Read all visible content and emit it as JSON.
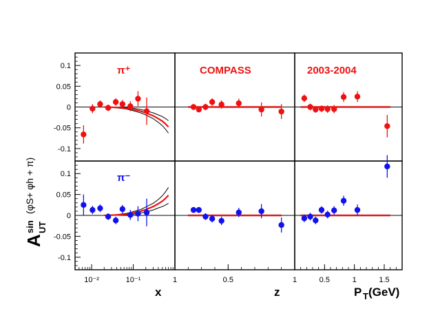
{
  "figure": {
    "ylabel_main": "A",
    "ylabel_sub": "UT",
    "ylabel_sup": "sin",
    "ylabel_func": "(φS+ φh + π)",
    "xlabels": [
      "x",
      "z",
      "P",
      "T",
      " (GeV)"
    ],
    "panel_labels": [
      "π⁺",
      "COMPASS",
      "2003-2004",
      "π⁻"
    ],
    "colors": {
      "pos": "#ee1111",
      "neg": "#1111ee",
      "curve_inner": "#ee1111",
      "band": "#000000",
      "frame": "#000000"
    }
  },
  "chart_data": {
    "type": "scatter",
    "ylim": [
      -0.13,
      0.13
    ],
    "yticks": [
      "0.1",
      "0.05",
      "0",
      "-0.05",
      "-0.1"
    ],
    "yticks_values": [
      0.1,
      0.05,
      0,
      -0.05,
      -0.1
    ],
    "x_ticks": {
      "x": [
        "10⁻²",
        "10⁻¹",
        "1"
      ],
      "z": [
        "0.5",
        "1"
      ],
      "pt": [
        "0.5",
        "1",
        "1.5"
      ]
    },
    "x_tick_values": {
      "x": [
        0.01,
        0.1,
        1
      ],
      "z": [
        0.5,
        1
      ],
      "pt": [
        0.5,
        1,
        1.5
      ]
    },
    "xlims": {
      "x": [
        0.004,
        1
      ],
      "z": [
        0.1,
        1
      ],
      "pt": [
        0,
        1.8
      ]
    },
    "x_scale": {
      "x": "log",
      "z": "linear",
      "pt": "linear"
    },
    "panels": [
      {
        "hadron": "pos",
        "var": "x",
        "points": [
          {
            "x": 0.0064,
            "y": -0.066,
            "err": 0.022
          },
          {
            "x": 0.0105,
            "y": -0.004,
            "err": 0.011
          },
          {
            "x": 0.016,
            "y": 0.007,
            "err": 0.009
          },
          {
            "x": 0.025,
            "y": -0.002,
            "err": 0.008
          },
          {
            "x": 0.038,
            "y": 0.012,
            "err": 0.009
          },
          {
            "x": 0.055,
            "y": 0.007,
            "err": 0.01
          },
          {
            "x": 0.085,
            "y": 0.002,
            "err": 0.012
          },
          {
            "x": 0.13,
            "y": 0.02,
            "err": 0.018
          },
          {
            "x": 0.21,
            "y": -0.01,
            "err": 0.033
          }
        ],
        "curve": {
          "x": [
            0.02,
            0.04,
            0.07,
            0.1,
            0.15,
            0.2,
            0.3,
            0.4,
            0.5,
            0.6,
            0.7
          ],
          "y": [
            0,
            -0.001,
            -0.003,
            -0.006,
            -0.01,
            -0.014,
            -0.021,
            -0.028,
            -0.034,
            -0.041,
            -0.048
          ],
          "band": [
            0,
            0.001,
            0.002,
            0.003,
            0.004,
            0.005,
            0.007,
            0.009,
            0.011,
            0.013,
            0.015
          ]
        }
      },
      {
        "hadron": "pos",
        "var": "z",
        "points": [
          {
            "x": 0.24,
            "y": 0.0,
            "err": 0.007
          },
          {
            "x": 0.28,
            "y": -0.006,
            "err": 0.007
          },
          {
            "x": 0.33,
            "y": 0.0,
            "err": 0.008
          },
          {
            "x": 0.38,
            "y": 0.012,
            "err": 0.009
          },
          {
            "x": 0.45,
            "y": 0.006,
            "err": 0.01
          },
          {
            "x": 0.58,
            "y": 0.009,
            "err": 0.011
          },
          {
            "x": 0.75,
            "y": -0.006,
            "err": 0.017
          },
          {
            "x": 0.9,
            "y": -0.011,
            "err": 0.018
          }
        ],
        "curve": {
          "x": [
            0.2,
            0.5,
            0.9
          ],
          "y": [
            0.0,
            0.0,
            0.0
          ],
          "band": [
            0.001,
            0.001,
            0.001
          ]
        }
      },
      {
        "hadron": "pos",
        "var": "pt",
        "points": [
          {
            "x": 0.16,
            "y": 0.021,
            "err": 0.009
          },
          {
            "x": 0.26,
            "y": 0.0,
            "err": 0.008
          },
          {
            "x": 0.35,
            "y": -0.006,
            "err": 0.008
          },
          {
            "x": 0.45,
            "y": -0.004,
            "err": 0.008
          },
          {
            "x": 0.55,
            "y": -0.005,
            "err": 0.009
          },
          {
            "x": 0.66,
            "y": -0.005,
            "err": 0.01
          },
          {
            "x": 0.82,
            "y": 0.024,
            "err": 0.012
          },
          {
            "x": 1.05,
            "y": 0.025,
            "err": 0.013
          },
          {
            "x": 1.55,
            "y": -0.046,
            "err": 0.027
          }
        ],
        "curve": {
          "x": [
            0.1,
            0.8,
            1.6
          ],
          "y": [
            0.0,
            0.0,
            0.0
          ],
          "band": [
            0.001,
            0.001,
            0.001
          ]
        }
      },
      {
        "hadron": "neg",
        "var": "x",
        "points": [
          {
            "x": 0.0064,
            "y": 0.025,
            "err": 0.025
          },
          {
            "x": 0.0105,
            "y": 0.013,
            "err": 0.01
          },
          {
            "x": 0.016,
            "y": 0.017,
            "err": 0.009
          },
          {
            "x": 0.025,
            "y": -0.003,
            "err": 0.008
          },
          {
            "x": 0.038,
            "y": -0.012,
            "err": 0.009
          },
          {
            "x": 0.055,
            "y": 0.015,
            "err": 0.01
          },
          {
            "x": 0.085,
            "y": 0.001,
            "err": 0.012
          },
          {
            "x": 0.13,
            "y": 0.004,
            "err": 0.018
          },
          {
            "x": 0.21,
            "y": 0.007,
            "err": 0.033
          }
        ],
        "curve": {
          "x": [
            0.02,
            0.04,
            0.07,
            0.1,
            0.15,
            0.2,
            0.3,
            0.4,
            0.5,
            0.6,
            0.7
          ],
          "y": [
            0,
            0.001,
            0.003,
            0.006,
            0.01,
            0.014,
            0.021,
            0.028,
            0.034,
            0.041,
            0.048
          ],
          "band": [
            0,
            0.001,
            0.002,
            0.003,
            0.004,
            0.006,
            0.008,
            0.01,
            0.013,
            0.016,
            0.019
          ]
        }
      },
      {
        "hadron": "neg",
        "var": "z",
        "points": [
          {
            "x": 0.24,
            "y": 0.013,
            "err": 0.007
          },
          {
            "x": 0.28,
            "y": 0.013,
            "err": 0.007
          },
          {
            "x": 0.33,
            "y": -0.003,
            "err": 0.008
          },
          {
            "x": 0.38,
            "y": -0.008,
            "err": 0.009
          },
          {
            "x": 0.45,
            "y": -0.013,
            "err": 0.01
          },
          {
            "x": 0.58,
            "y": 0.007,
            "err": 0.011
          },
          {
            "x": 0.75,
            "y": 0.01,
            "err": 0.017
          },
          {
            "x": 0.9,
            "y": -0.023,
            "err": 0.018
          }
        ],
        "curve": {
          "x": [
            0.2,
            0.5,
            0.9
          ],
          "y": [
            0.0,
            0.0,
            0.0
          ],
          "band": [
            0.001,
            0.001,
            0.001
          ]
        }
      },
      {
        "hadron": "neg",
        "var": "pt",
        "points": [
          {
            "x": 0.16,
            "y": -0.007,
            "err": 0.009
          },
          {
            "x": 0.26,
            "y": -0.003,
            "err": 0.009
          },
          {
            "x": 0.35,
            "y": -0.012,
            "err": 0.009
          },
          {
            "x": 0.45,
            "y": 0.013,
            "err": 0.009
          },
          {
            "x": 0.55,
            "y": 0.002,
            "err": 0.009
          },
          {
            "x": 0.66,
            "y": 0.012,
            "err": 0.01
          },
          {
            "x": 0.82,
            "y": 0.035,
            "err": 0.012
          },
          {
            "x": 1.05,
            "y": 0.013,
            "err": 0.013
          },
          {
            "x": 1.55,
            "y": 0.117,
            "err": 0.027
          }
        ],
        "curve": {
          "x": [
            0.1,
            0.8,
            1.6
          ],
          "y": [
            0.0,
            0.0,
            0.0
          ],
          "band": [
            0.001,
            0.001,
            0.001
          ]
        }
      }
    ]
  }
}
